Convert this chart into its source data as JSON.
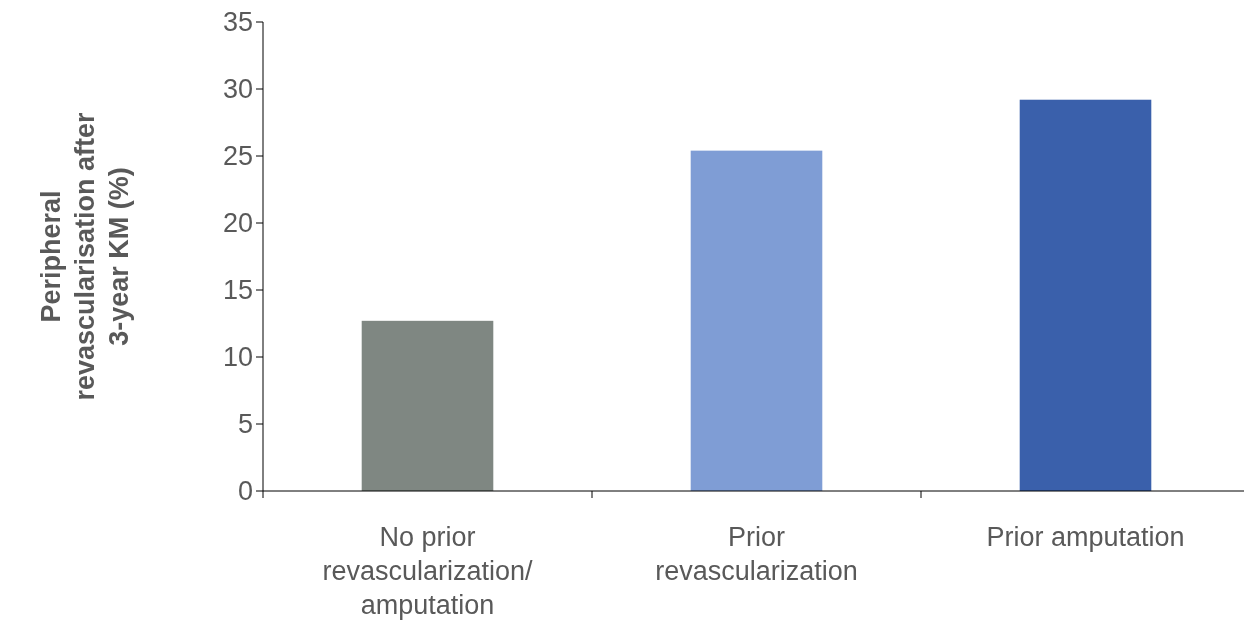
{
  "chart_data": {
    "type": "bar",
    "ylabel": "Peripheral\nrevascularisation after\n3-year KM (%)",
    "categories": [
      "No prior revascularization/ amputation",
      "Prior revascularization",
      "Prior amputation"
    ],
    "values": [
      12.7,
      25.4,
      29.2
    ],
    "colors": [
      "#7f8782",
      "#7f9dd5",
      "#3a60ab"
    ],
    "ylim": [
      0,
      35
    ],
    "yticks": [
      0,
      5,
      10,
      15,
      20,
      25,
      30,
      35
    ],
    "grid": false
  }
}
